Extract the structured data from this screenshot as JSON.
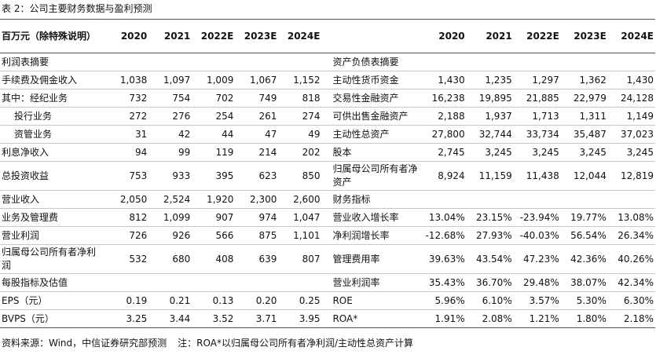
{
  "title": "表 2：公司主要财务数据与盈利预测",
  "table": {
    "unit_label": "百万元（除特殊说明）",
    "years_left": [
      "2020",
      "2021",
      "2022E",
      "2023E",
      "2024E"
    ],
    "years_right": [
      "2020",
      "2021",
      "2022E",
      "2023E",
      "2024E"
    ],
    "left_rows": [
      {
        "label": "利润表摘要"
      },
      {
        "label": "手续费及佣金收入",
        "values": [
          "1,038",
          "1,097",
          "1,009",
          "1,067",
          "1,152"
        ]
      },
      {
        "label": "其中：经纪业务",
        "values": [
          "732",
          "754",
          "702",
          "749",
          "818"
        ]
      },
      {
        "label": "投行业务",
        "values": [
          "272",
          "276",
          "254",
          "261",
          "274"
        ]
      },
      {
        "label": "资管业务",
        "values": [
          "31",
          "42",
          "44",
          "47",
          "49"
        ]
      },
      {
        "label": "利息净收入",
        "values": [
          "94",
          "99",
          "119",
          "214",
          "202"
        ]
      },
      {
        "label": "总投资收益",
        "values": [
          "753",
          "933",
          "395",
          "623",
          "850"
        ]
      },
      {
        "label": "营业收入",
        "values": [
          "2,050",
          "2,524",
          "1,920",
          "2,300",
          "2,600"
        ]
      },
      {
        "label": "业务及管理费",
        "values": [
          "812",
          "1,099",
          "907",
          "974",
          "1,047"
        ]
      },
      {
        "label": "营业利润",
        "values": [
          "726",
          "926",
          "566",
          "875",
          "1,101"
        ]
      },
      {
        "label": "归属母公司所有者净利润",
        "values": [
          "532",
          "680",
          "408",
          "639",
          "807"
        ]
      },
      {
        "label": "每股指标及估值"
      },
      {
        "label": "EPS（元）",
        "values": [
          "0.19",
          "0.21",
          "0.13",
          "0.20",
          "0.25"
        ]
      },
      {
        "label": "BVPS（元）",
        "values": [
          "3.25",
          "3.44",
          "3.52",
          "3.71",
          "3.95"
        ]
      }
    ],
    "right_rows": [
      {
        "label": "资产负债表摘要"
      },
      {
        "label": "主动性货币资金",
        "values": [
          "1,430",
          "1,235",
          "1,297",
          "1,362",
          "1,430"
        ]
      },
      {
        "label": "交易性金融资产",
        "values": [
          "16,238",
          "19,895",
          "21,885",
          "22,979",
          "24,128"
        ]
      },
      {
        "label": "可供出售金融资产",
        "values": [
          "2,188",
          "1,937",
          "1,713",
          "1,311",
          "1,149"
        ]
      },
      {
        "label": "主动性总资产",
        "values": [
          "27,800",
          "32,744",
          "33,734",
          "35,487",
          "37,023"
        ]
      },
      {
        "label": "股本",
        "values": [
          "2,745",
          "3,245",
          "3,245",
          "3,245",
          "3,245"
        ]
      },
      {
        "label": "归属母公司所有者净资产",
        "values": [
          "8,924",
          "11,159",
          "11,438",
          "12,044",
          "12,819"
        ]
      },
      {
        "label": "财务指标"
      },
      {
        "label": "营业收入增长率",
        "values": [
          "13.04%",
          "23.15%",
          "-23.94%",
          "19.77%",
          "13.08%"
        ]
      },
      {
        "label": "净利润增长率",
        "values": [
          "-12.68%",
          "27.93%",
          "-40.03%",
          "56.54%",
          "26.34%"
        ]
      },
      {
        "label": "管理费用率",
        "values": [
          "39.63%",
          "43.54%",
          "47.23%",
          "42.36%",
          "40.26%"
        ]
      },
      {
        "label": "营业利润率",
        "values": [
          "35.43%",
          "36.70%",
          "29.48%",
          "38.07%",
          "42.34%"
        ]
      },
      {
        "label": "ROE",
        "values": [
          "5.96%",
          "6.10%",
          "3.57%",
          "5.30%",
          "6.30%"
        ]
      },
      {
        "label": "ROA*",
        "values": [
          "1.91%",
          "2.08%",
          "1.21%",
          "1.80%",
          "2.18%"
        ]
      }
    ]
  },
  "footer": {
    "source": "资料来源：Wind，中信证券研究部预测",
    "note": "注：ROA*以归属母公司所有者净利润/主动性总资产计算"
  }
}
